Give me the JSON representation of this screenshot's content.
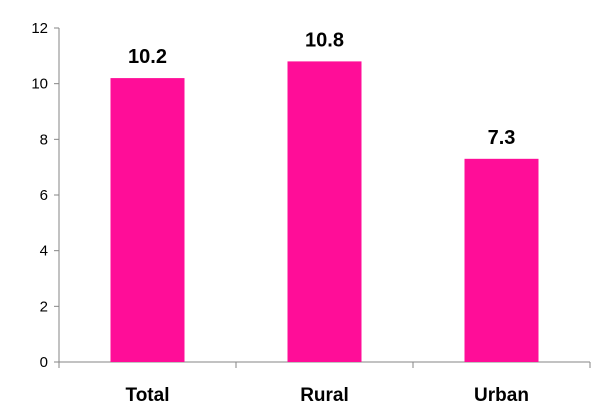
{
  "chart_data": {
    "type": "bar",
    "categories": [
      "Total",
      "Rural",
      "Urban"
    ],
    "values": [
      10.2,
      10.8,
      7.3
    ],
    "data_labels": [
      "10.2",
      "10.8",
      "7.3"
    ],
    "title": "",
    "xlabel": "",
    "ylabel": "",
    "ylim": [
      0,
      12
    ],
    "y_ticks": [
      "0",
      "2",
      "4",
      "6",
      "8",
      "10",
      "12"
    ],
    "grid": false,
    "legend": "none",
    "bar_color": "#FF0D98",
    "axis_color": "#868686"
  }
}
